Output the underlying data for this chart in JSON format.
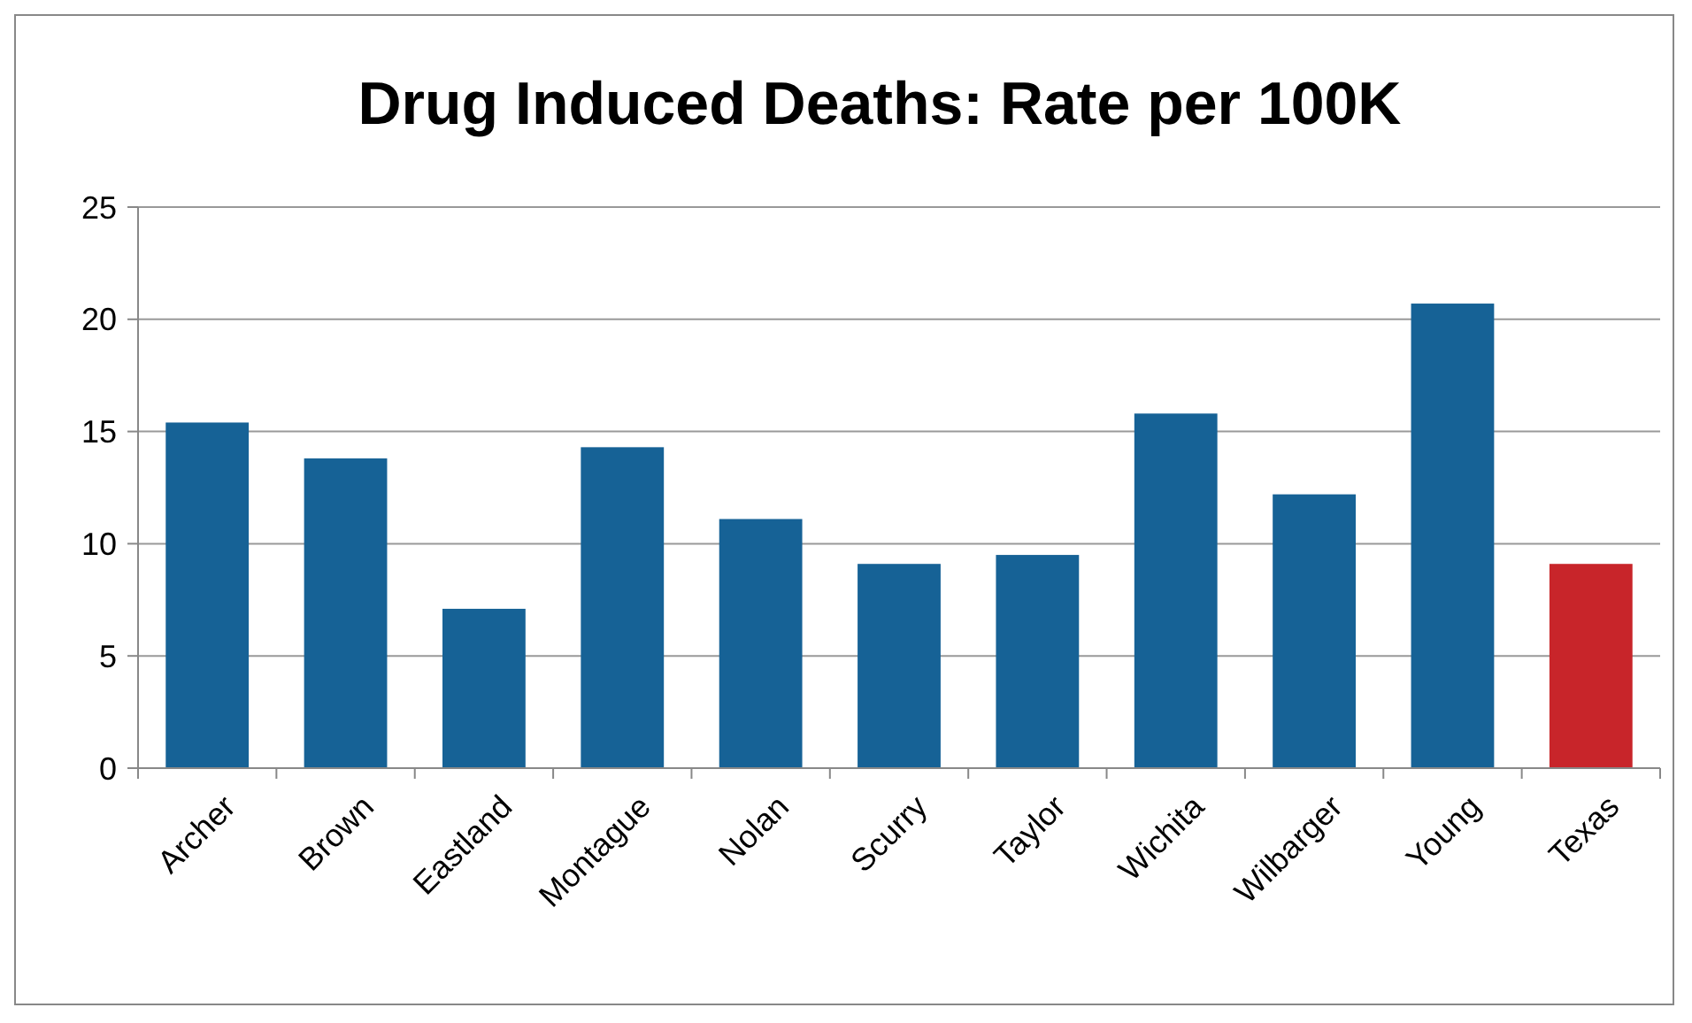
{
  "chart_data": {
    "type": "bar",
    "title": "Drug Induced Deaths: Rate per 100K",
    "categories": [
      "Archer",
      "Brown",
      "Eastland",
      "Montague",
      "Nolan",
      "Scurry",
      "Taylor",
      "Wichita",
      "Wilbarger",
      "Young",
      "Texas"
    ],
    "values": [
      15.4,
      13.8,
      7.1,
      14.3,
      11.1,
      9.1,
      9.5,
      15.8,
      12.2,
      20.7,
      9.1
    ],
    "colors": [
      "#166296",
      "#166296",
      "#166296",
      "#166296",
      "#166296",
      "#166296",
      "#166296",
      "#166296",
      "#166296",
      "#166296",
      "#c8252a"
    ],
    "ylim": [
      0,
      25
    ],
    "yticks": [
      0,
      5,
      10,
      15,
      20,
      25
    ],
    "grid": "y"
  }
}
